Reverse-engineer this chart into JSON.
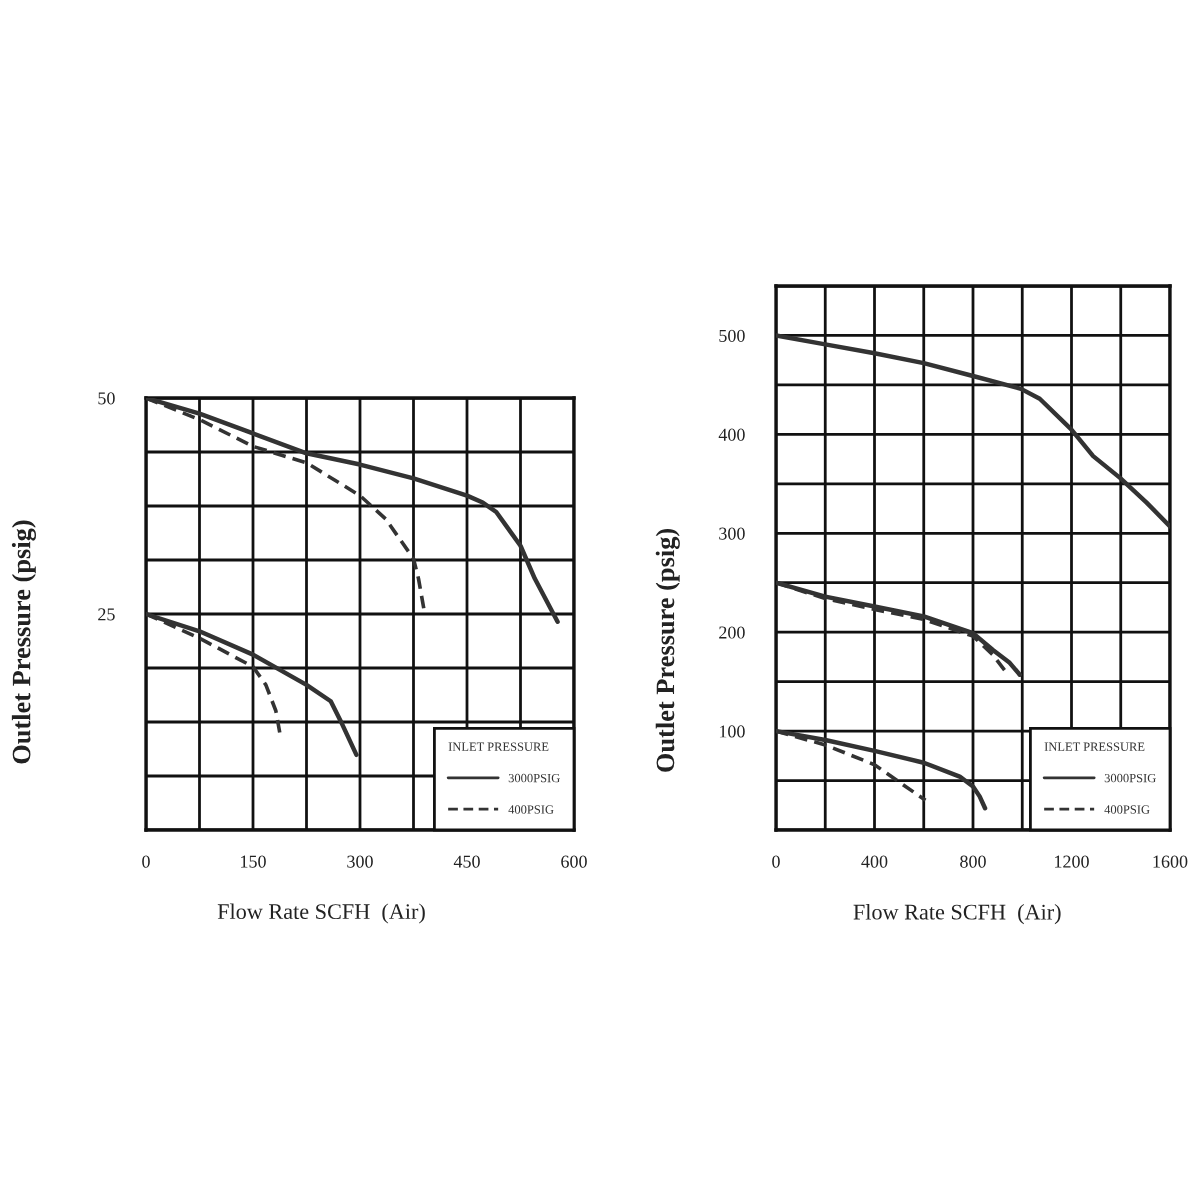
{
  "chart_data": [
    {
      "type": "line",
      "xlabel": "Flow Rate SCFH  (Air)",
      "ylabel": "Outlet Pressure (psig)",
      "legend_title": "INLET PRESSURE",
      "legend": "bottom right",
      "grid": true,
      "xlim": [
        0,
        600
      ],
      "xticks": [
        0,
        {
          "value": 75,
          "label": null
        },
        150,
        {
          "value": 225,
          "label": null
        },
        300,
        {
          "value": 375,
          "label": null
        },
        450,
        {
          "value": 525,
          "label": null
        },
        600
      ],
      "ylim": [
        0,
        50
      ],
      "yticks": [
        {
          "value": 0,
          "label": null
        },
        {
          "value": 6.25,
          "label": null
        },
        {
          "value": 12.5,
          "label": null
        },
        {
          "value": 18.75,
          "label": null
        },
        25,
        {
          "value": 31.25,
          "label": null
        },
        {
          "value": 37.5,
          "label": null
        },
        {
          "value": 43.75,
          "label": null
        },
        50
      ],
      "series": [
        {
          "name": "3000PSIG",
          "color": "#333333",
          "line_style": "solid",
          "x": [
            0,
            75,
            150,
            225,
            300,
            375,
            450,
            472,
            491,
            525,
            545,
            577
          ],
          "values": [
            50,
            48.2,
            45.9,
            43.6,
            42.3,
            40.7,
            38.7,
            37.9,
            36.8,
            32.9,
            29.1,
            24.1
          ]
        },
        {
          "name": "400PSIG",
          "color": "#333333",
          "line_style": "dashed",
          "x": [
            0,
            75,
            150,
            225,
            300,
            336,
            375,
            382,
            391
          ],
          "values": [
            50,
            47.5,
            44.4,
            42.5,
            38.7,
            36.0,
            31.4,
            29.1,
            24.9
          ]
        },
        {
          "name": "3000PSIG",
          "color": "#333333",
          "line_style": "solid",
          "x": [
            0,
            75,
            150,
            225,
            259,
            273,
            295
          ],
          "values": [
            25,
            23.0,
            20.3,
            16.8,
            14.9,
            12.6,
            8.7
          ]
        },
        {
          "name": "400PSIG",
          "color": "#333333",
          "line_style": "dashed",
          "x": [
            0,
            75,
            150,
            168,
            182,
            189
          ],
          "values": [
            25,
            22.2,
            18.9,
            16.8,
            13.8,
            10.6
          ]
        }
      ]
    },
    {
      "type": "line",
      "xlabel": "Flow Rate SCFH  (Air)",
      "ylabel": "Outlet Pressure (psig)",
      "legend_title": "INLET PRESSURE",
      "legend": "bottom right",
      "grid": true,
      "xlim": [
        0,
        1600
      ],
      "xticks": [
        0,
        {
          "value": 200,
          "label": null
        },
        400,
        {
          "value": 600,
          "label": null
        },
        800,
        {
          "value": 1000,
          "label": null
        },
        1200,
        {
          "value": 1400,
          "label": null
        },
        1600
      ],
      "ylim": [
        0,
        550
      ],
      "yticks": [
        {
          "value": 0,
          "label": null
        },
        {
          "value": 50,
          "label": null
        },
        100,
        {
          "value": 150,
          "label": null
        },
        200,
        {
          "value": 250,
          "label": null
        },
        300,
        {
          "value": 350,
          "label": null
        },
        400,
        {
          "value": 450,
          "label": null
        },
        500,
        {
          "value": 550,
          "label": null
        }
      ],
      "series": [
        {
          "name": "3000PSIG",
          "color": "#333333",
          "line_style": "solid",
          "x": [
            0,
            200,
            400,
            600,
            800,
            995,
            1071,
            1199,
            1288,
            1397,
            1505,
            1600
          ],
          "values": [
            500,
            491,
            482,
            472,
            459,
            446,
            436,
            405,
            378,
            356,
            331,
            307
          ]
        },
        {
          "name": "3000PSIG",
          "color": "#333333",
          "line_style": "solid",
          "x": [
            0,
            200,
            400,
            600,
            800,
            881,
            949,
            990
          ],
          "values": [
            250,
            236,
            226,
            216,
            199,
            182,
            169,
            157
          ]
        },
        {
          "name": "400PSIG",
          "color": "#333333",
          "line_style": "dashed",
          "x": [
            0,
            200,
            400,
            600,
            800,
            881,
            936
          ],
          "values": [
            250,
            234,
            223,
            213,
            196,
            177,
            159
          ]
        },
        {
          "name": "3000PSIG",
          "color": "#333333",
          "line_style": "solid",
          "x": [
            0,
            200,
            400,
            600,
            746,
            800,
            827,
            849
          ],
          "values": [
            100,
            91,
            80,
            68,
            54,
            44,
            34,
            22
          ]
        },
        {
          "name": "400PSIG",
          "color": "#333333",
          "line_style": "dashed",
          "x": [
            0,
            200,
            400,
            607
          ],
          "values": [
            100,
            86,
            66,
            30
          ]
        }
      ]
    }
  ]
}
